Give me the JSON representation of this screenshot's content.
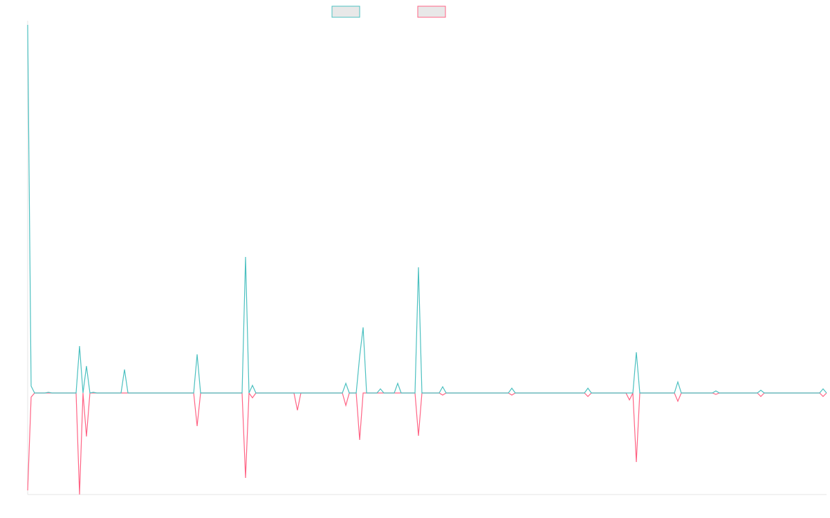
{
  "chart_data": {
    "type": "line",
    "ylim": [
      -147,
      533
    ],
    "series": [
      {
        "color": "#4bc0c0",
        "values": [
          533,
          10,
          0,
          0,
          0,
          0,
          1,
          0,
          0,
          0,
          0,
          0,
          0,
          0,
          0,
          68,
          0,
          39,
          0,
          1,
          0,
          0,
          0,
          0,
          0,
          0,
          0,
          0,
          34,
          0,
          0,
          0,
          0,
          0,
          0,
          0,
          0,
          0,
          0,
          0,
          0,
          0,
          0,
          0,
          0,
          0,
          0,
          0,
          0,
          56,
          0,
          0,
          0,
          0,
          0,
          0,
          0,
          0,
          0,
          0,
          0,
          0,
          0,
          197,
          0,
          11,
          0,
          0,
          0,
          0,
          0,
          0,
          0,
          0,
          0,
          0,
          0,
          0,
          0,
          0,
          0,
          0,
          0,
          0,
          0,
          0,
          0,
          0,
          0,
          0,
          0,
          0,
          14,
          0,
          0,
          0,
          53,
          95,
          0,
          0,
          0,
          0,
          6,
          0,
          0,
          0,
          0,
          14,
          0,
          0,
          0,
          0,
          0,
          182,
          0,
          0,
          0,
          0,
          0,
          0,
          9,
          0,
          0,
          0,
          0,
          0,
          0,
          0,
          0,
          0,
          0,
          0,
          0,
          0,
          0,
          0,
          0,
          0,
          0,
          0,
          7,
          0,
          0,
          0,
          0,
          0,
          0,
          0,
          0,
          0,
          0,
          0,
          0,
          0,
          0,
          0,
          0,
          0,
          0,
          0,
          0,
          0,
          7,
          0,
          0,
          0,
          0,
          0,
          0,
          0,
          0,
          0,
          0,
          0,
          0,
          0,
          59,
          0,
          0,
          0,
          0,
          0,
          0,
          0,
          0,
          0,
          0,
          0,
          16,
          0,
          0,
          0,
          0,
          0,
          0,
          0,
          0,
          0,
          0,
          3,
          0,
          0,
          0,
          0,
          0,
          0,
          0,
          0,
          0,
          0,
          0,
          0,
          4,
          0,
          0,
          0,
          0,
          0,
          0,
          0,
          0,
          0,
          0,
          0,
          0,
          0,
          0,
          0,
          0,
          0,
          6,
          0
        ]
      },
      {
        "color": "#ff6384",
        "values": [
          -141,
          -6,
          0,
          0,
          0,
          0,
          0,
          0,
          0,
          0,
          0,
          0,
          0,
          0,
          0,
          -147,
          0,
          -63,
          0,
          0,
          0,
          0,
          0,
          0,
          0,
          0,
          0,
          0,
          0,
          0,
          0,
          0,
          0,
          0,
          0,
          0,
          0,
          0,
          0,
          0,
          0,
          0,
          0,
          0,
          0,
          0,
          0,
          0,
          0,
          -48,
          0,
          0,
          0,
          0,
          0,
          0,
          0,
          0,
          0,
          0,
          0,
          0,
          0,
          -123,
          0,
          -7,
          0,
          0,
          0,
          0,
          0,
          0,
          0,
          0,
          0,
          0,
          0,
          0,
          -25,
          0,
          0,
          0,
          0,
          0,
          0,
          0,
          0,
          0,
          0,
          0,
          0,
          0,
          -18,
          0,
          0,
          0,
          -68,
          0,
          0,
          0,
          0,
          0,
          0,
          0,
          0,
          0,
          0,
          0,
          0,
          0,
          0,
          0,
          0,
          -62,
          0,
          0,
          0,
          0,
          0,
          0,
          -3,
          0,
          0,
          0,
          0,
          0,
          0,
          0,
          0,
          0,
          0,
          0,
          0,
          0,
          0,
          0,
          0,
          0,
          0,
          0,
          -3,
          0,
          0,
          0,
          0,
          0,
          0,
          0,
          0,
          0,
          0,
          0,
          0,
          0,
          0,
          0,
          0,
          0,
          0,
          0,
          0,
          0,
          -5,
          0,
          0,
          0,
          0,
          0,
          0,
          0,
          0,
          0,
          0,
          0,
          -10,
          0,
          -100,
          0,
          0,
          0,
          0,
          0,
          0,
          0,
          0,
          0,
          0,
          0,
          -12,
          0,
          0,
          0,
          0,
          0,
          0,
          0,
          0,
          0,
          0,
          -2,
          0,
          0,
          0,
          0,
          0,
          0,
          0,
          0,
          0,
          0,
          0,
          0,
          -5,
          0,
          0,
          0,
          0,
          0,
          0,
          0,
          0,
          0,
          0,
          0,
          0,
          0,
          0,
          0,
          0,
          0,
          -5,
          0
        ]
      }
    ]
  }
}
